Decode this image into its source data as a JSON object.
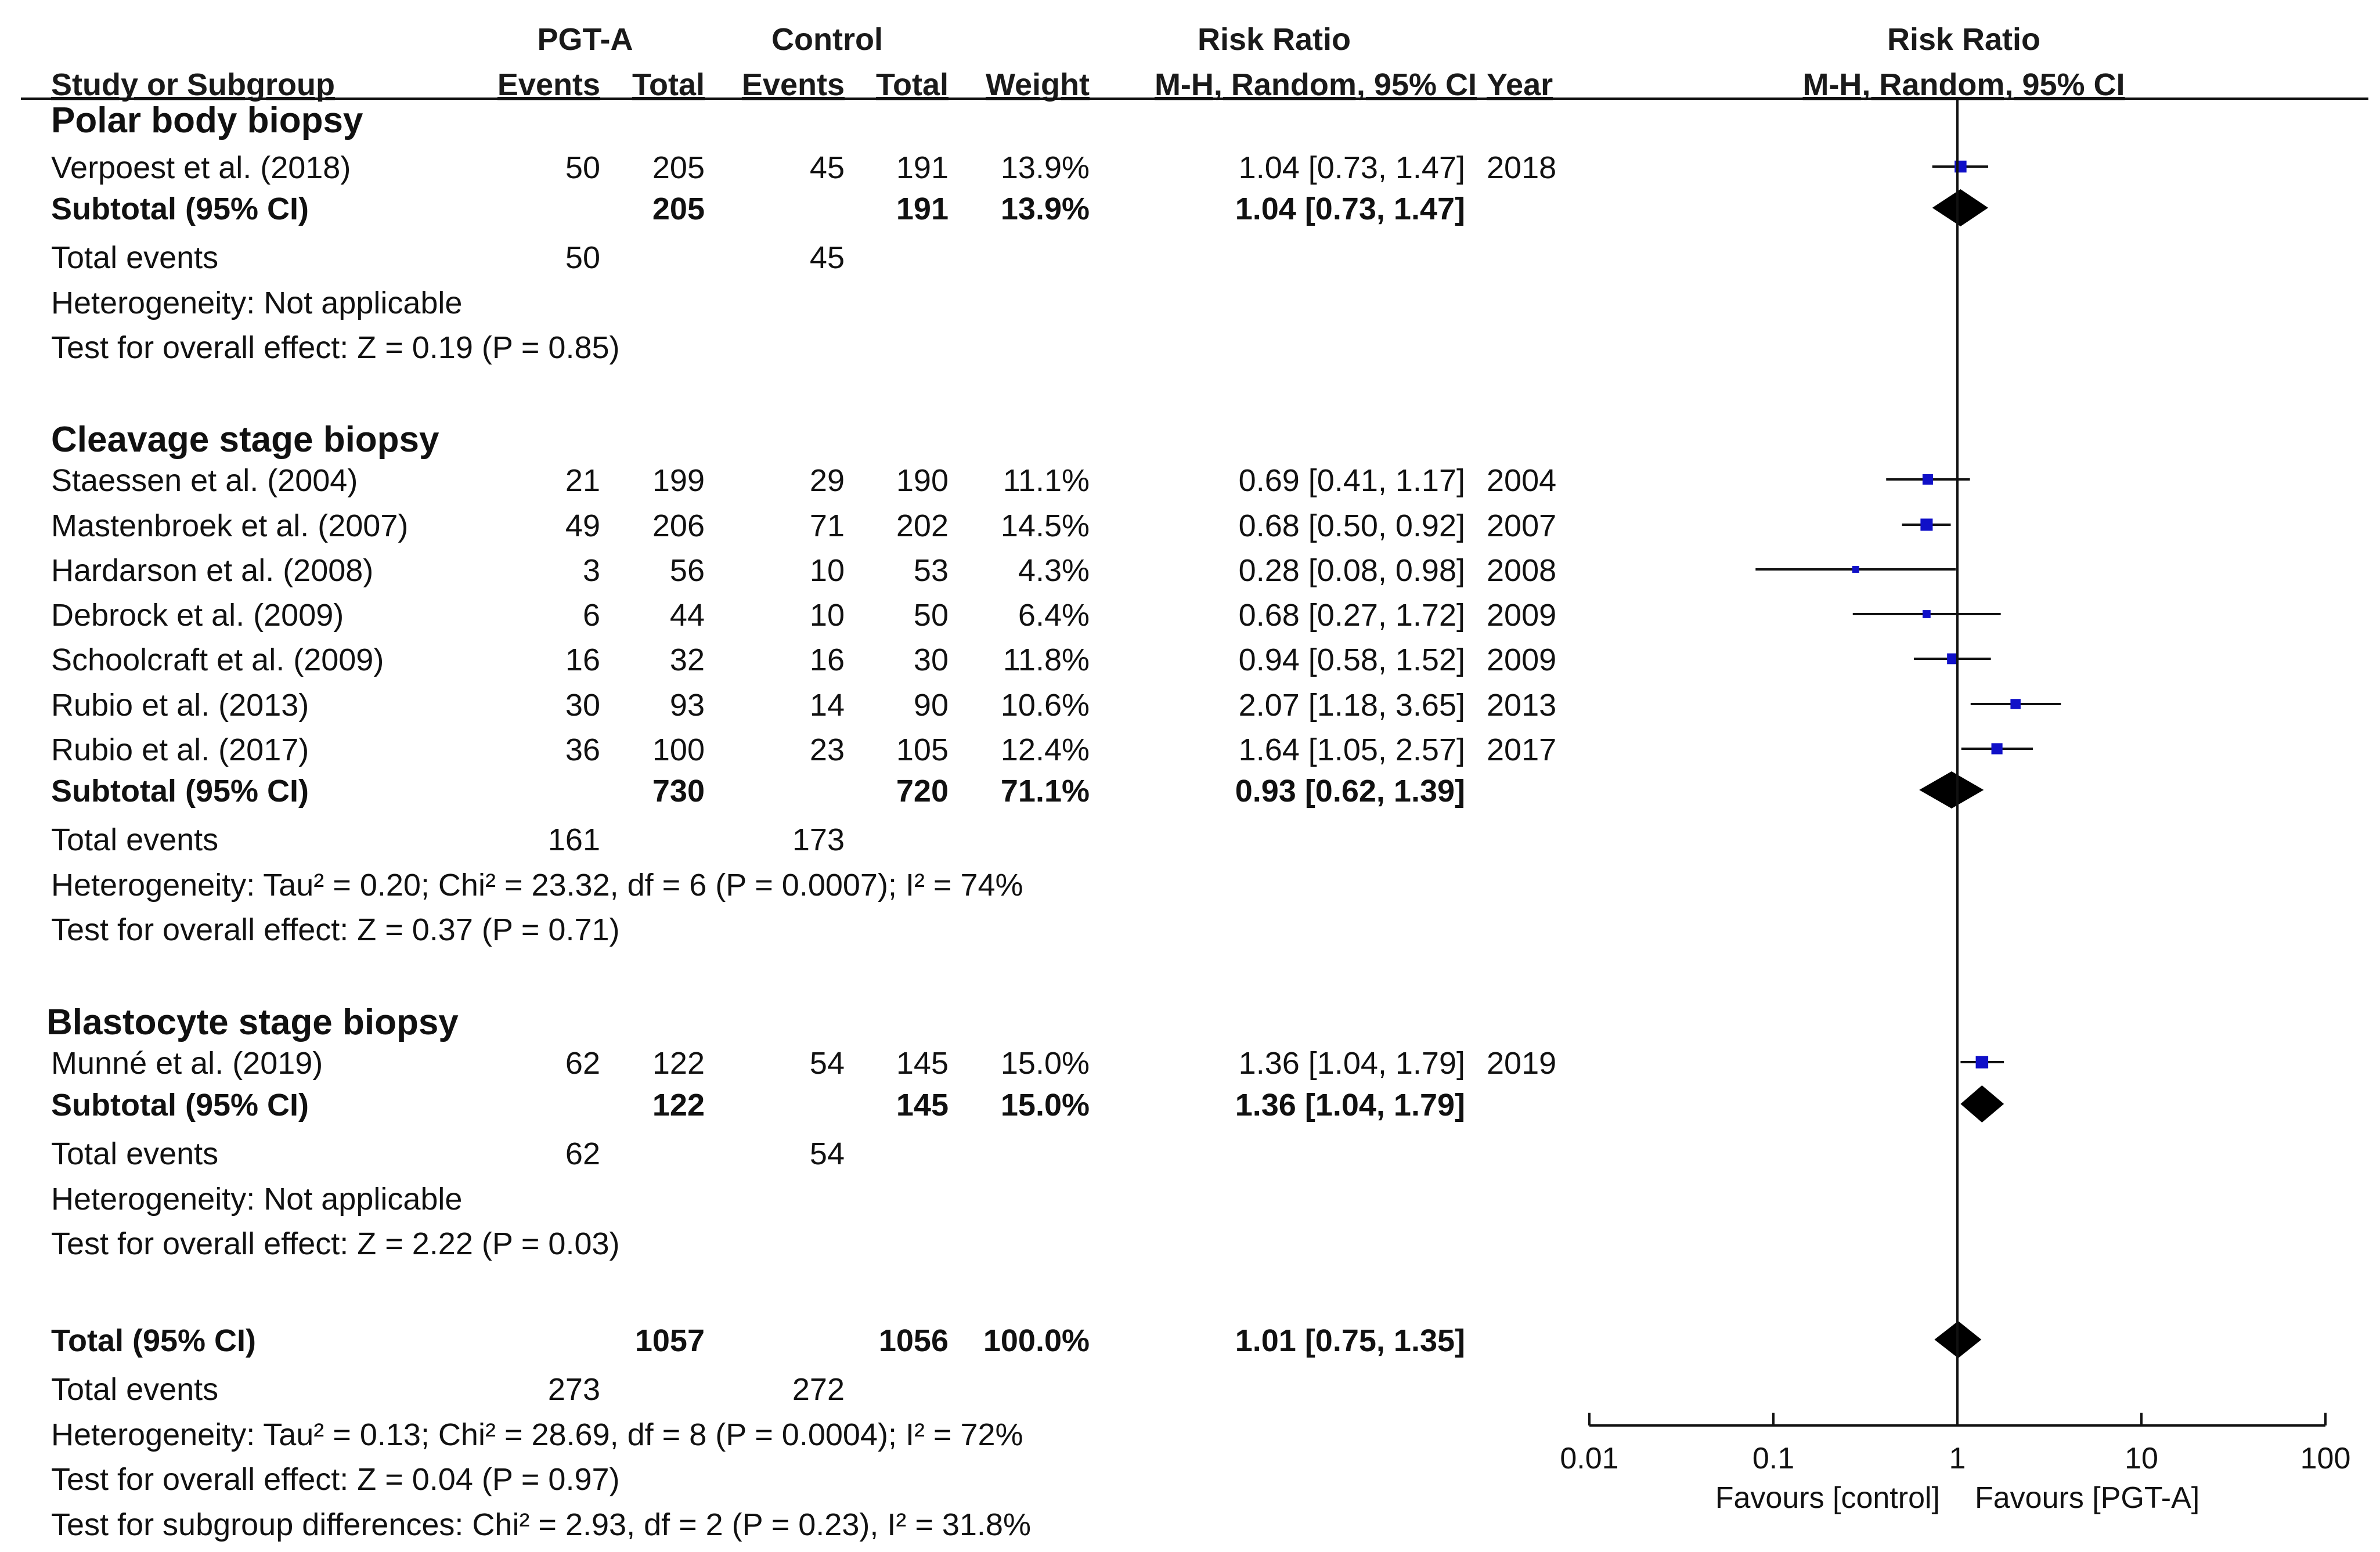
{
  "header": {
    "group1": "PGT-A",
    "group2": "Control",
    "effect_col": "Risk Ratio",
    "effect_method": "M-H, Random, 95% CI",
    "plot_title": "Risk Ratio",
    "plot_method": "M-H, Random, 95% CI",
    "columns": [
      "Study or Subgroup",
      "Events",
      "Total",
      "Events",
      "Total",
      "Weight",
      "M-H, Random, 95% CI",
      "Year"
    ]
  },
  "colors": {
    "group_title": "#1a1aee",
    "study_marker": "#1010c8",
    "diamond": "#000000",
    "text": "#111111"
  },
  "chart_data": {
    "type": "forest",
    "scale": "log",
    "xlim": [
      0.01,
      100
    ],
    "null_value": 1,
    "axis_ticks": [
      0.01,
      0.1,
      1,
      10,
      100
    ],
    "axis_tick_labels": [
      "0.01",
      "0.1",
      "1",
      "10",
      "100"
    ],
    "favours_left": "Favours [control]",
    "favours_right": "Favours [PGT-A]",
    "groups": [
      {
        "title": "Polar body biopsy",
        "studies": [
          {
            "name": "Verpoest et al. (2018)",
            "e1": "50",
            "t1": "205",
            "e2": "45",
            "t2": "191",
            "weight": "13.9%",
            "ci_text": "1.04 [0.73, 1.47]",
            "year": "2018",
            "rr": 1.04,
            "lo": 0.73,
            "hi": 1.47
          }
        ],
        "subtotal": {
          "label": "Subtotal (95% CI)",
          "t1": "205",
          "t2": "191",
          "weight": "13.9%",
          "ci_text": "1.04 [0.73, 1.47]",
          "rr": 1.04,
          "lo": 0.73,
          "hi": 1.47
        },
        "total_events": {
          "label": "Total events",
          "e1": "50",
          "e2": "45"
        },
        "heterogeneity": "Heterogeneity: Not applicable",
        "overall": "Test for overall effect: Z = 0.19 (P = 0.85)"
      },
      {
        "title": "Cleavage stage biopsy",
        "studies": [
          {
            "name": "Staessen et al. (2004)",
            "e1": "21",
            "t1": "199",
            "e2": "29",
            "t2": "190",
            "weight": "11.1%",
            "ci_text": "0.69 [0.41, 1.17]",
            "year": "2004",
            "rr": 0.69,
            "lo": 0.41,
            "hi": 1.17
          },
          {
            "name": "Mastenbroek et al. (2007)",
            "e1": "49",
            "t1": "206",
            "e2": "71",
            "t2": "202",
            "weight": "14.5%",
            "ci_text": "0.68 [0.50, 0.92]",
            "year": "2007",
            "rr": 0.68,
            "lo": 0.5,
            "hi": 0.92
          },
          {
            "name": "Hardarson et al. (2008)",
            "e1": "3",
            "t1": "56",
            "e2": "10",
            "t2": "53",
            "weight": "4.3%",
            "ci_text": "0.28 [0.08, 0.98]",
            "year": "2008",
            "rr": 0.28,
            "lo": 0.08,
            "hi": 0.98
          },
          {
            "name": "Debrock et al. (2009)",
            "e1": "6",
            "t1": "44",
            "e2": "10",
            "t2": "50",
            "weight": "6.4%",
            "ci_text": "0.68 [0.27, 1.72]",
            "year": "2009",
            "rr": 0.68,
            "lo": 0.27,
            "hi": 1.72
          },
          {
            "name": "Schoolcraft et al. (2009)",
            "e1": "16",
            "t1": "32",
            "e2": "16",
            "t2": "30",
            "weight": "11.8%",
            "ci_text": "0.94 [0.58, 1.52]",
            "year": "2009",
            "rr": 0.94,
            "lo": 0.58,
            "hi": 1.52
          },
          {
            "name": "Rubio et al. (2013)",
            "e1": "30",
            "t1": "93",
            "e2": "14",
            "t2": "90",
            "weight": "10.6%",
            "ci_text": "2.07 [1.18, 3.65]",
            "year": "2013",
            "rr": 2.07,
            "lo": 1.18,
            "hi": 3.65
          },
          {
            "name": "Rubio et al. (2017)",
            "e1": "36",
            "t1": "100",
            "e2": "23",
            "t2": "105",
            "weight": "12.4%",
            "ci_text": "1.64 [1.05, 2.57]",
            "year": "2017",
            "rr": 1.64,
            "lo": 1.05,
            "hi": 2.57
          }
        ],
        "subtotal": {
          "label": "Subtotal (95% CI)",
          "t1": "730",
          "t2": "720",
          "weight": "71.1%",
          "ci_text": "0.93 [0.62, 1.39]",
          "rr": 0.93,
          "lo": 0.62,
          "hi": 1.39
        },
        "total_events": {
          "label": "Total events",
          "e1": "161",
          "e2": "173"
        },
        "heterogeneity": "Heterogeneity: Tau² = 0.20; Chi² = 23.32, df = 6 (P = 0.0007); I² = 74%",
        "overall": "Test for overall effect: Z = 0.37 (P = 0.71)"
      },
      {
        "title": "Blastocyte stage biopsy",
        "studies": [
          {
            "name": "Munné et al. (2019)",
            "e1": "62",
            "t1": "122",
            "e2": "54",
            "t2": "145",
            "weight": "15.0%",
            "ci_text": "1.36 [1.04, 1.79]",
            "year": "2019",
            "rr": 1.36,
            "lo": 1.04,
            "hi": 1.79
          }
        ],
        "subtotal": {
          "label": "Subtotal (95% CI)",
          "t1": "122",
          "t2": "145",
          "weight": "15.0%",
          "ci_text": "1.36 [1.04, 1.79]",
          "rr": 1.36,
          "lo": 1.04,
          "hi": 1.79
        },
        "total_events": {
          "label": "Total events",
          "e1": "62",
          "e2": "54"
        },
        "heterogeneity": "Heterogeneity: Not applicable",
        "overall": "Test for overall effect: Z = 2.22 (P = 0.03)"
      }
    ],
    "overall": {
      "label": "Total (95% CI)",
      "t1": "1057",
      "t2": "1056",
      "weight": "100.0%",
      "ci_text": "1.01 [0.75, 1.35]",
      "rr": 1.01,
      "lo": 0.75,
      "hi": 1.35,
      "total_events": {
        "label": "Total events",
        "e1": "273",
        "e2": "272"
      },
      "heterogeneity": "Heterogeneity: Tau² = 0.13; Chi² = 28.69, df = 8 (P = 0.0004); I² = 72%",
      "overall": "Test for overall effect: Z = 0.04 (P = 0.97)",
      "subgroup_diff": "Test for subgroup differences: Chi² = 2.93, df = 2 (P = 0.23), I² = 31.8%"
    }
  }
}
